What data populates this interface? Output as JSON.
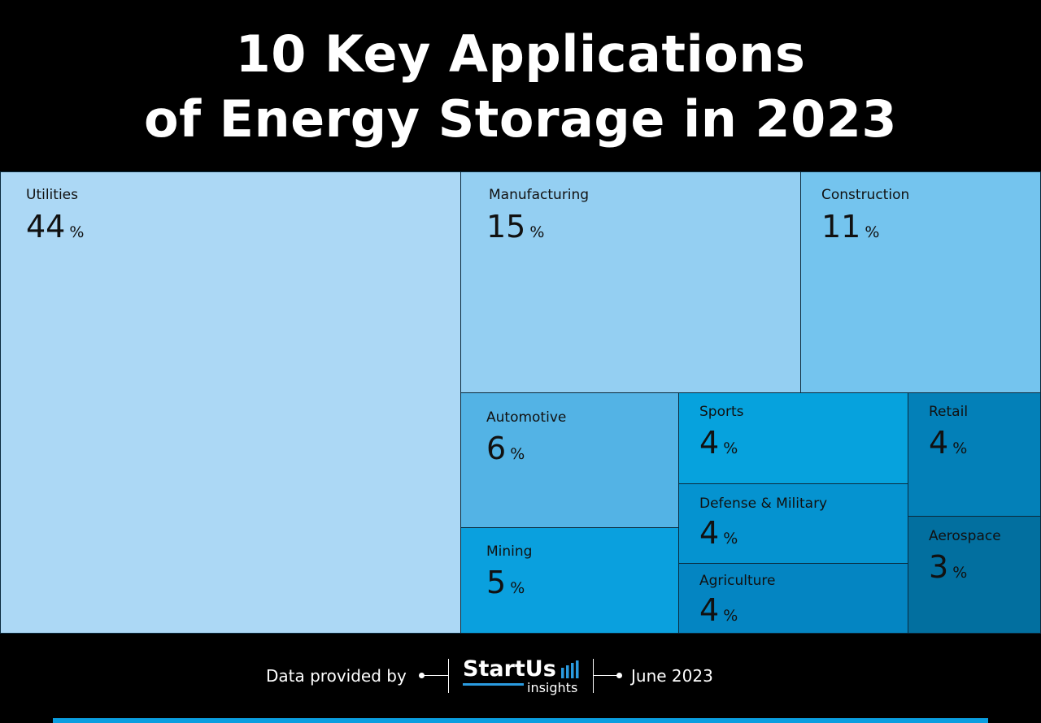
{
  "title": {
    "line1": "10 Key Applications",
    "line2": "of Energy Storage in 2023"
  },
  "chart_data": {
    "type": "treemap",
    "unit": "%",
    "items": [
      {
        "label": "Utilities",
        "value": 44,
        "color": "#acd8f5"
      },
      {
        "label": "Manufacturing",
        "value": 15,
        "color": "#94cff2"
      },
      {
        "label": "Construction",
        "value": 11,
        "color": "#74c4ee"
      },
      {
        "label": "Automotive",
        "value": 6,
        "color": "#53b3e5"
      },
      {
        "label": "Mining",
        "value": 5,
        "color": "#0aa0de"
      },
      {
        "label": "Sports",
        "value": 4,
        "color": "#06a2dd"
      },
      {
        "label": "Defense & Military",
        "value": 4,
        "color": "#0593d0"
      },
      {
        "label": "Agriculture",
        "value": 4,
        "color": "#0485c2"
      },
      {
        "label": "Retail",
        "value": 4,
        "color": "#0380b8"
      },
      {
        "label": "Aerospace",
        "value": 3,
        "color": "#026f9f"
      }
    ]
  },
  "footer": {
    "provided_by": "Data provided by",
    "logo_main": "StartUs",
    "logo_sub": "insights",
    "date": "June 2023"
  },
  "colors": {
    "background": "#000000",
    "accent": "#0a9ee0"
  }
}
